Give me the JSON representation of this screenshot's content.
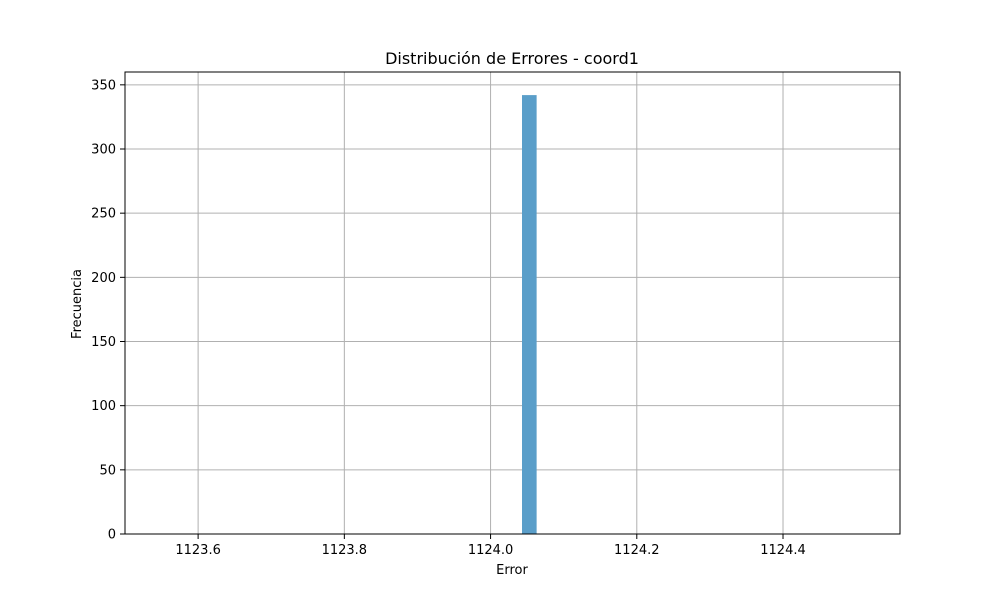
{
  "chart_data": {
    "type": "bar",
    "title": "Distribución de Errores - coord1",
    "xlabel": "Error",
    "ylabel": "Frecuencia",
    "xlim": [
      1123.5,
      1124.56
    ],
    "ylim": [
      0,
      360
    ],
    "xticks": [
      1123.6,
      1123.8,
      1124.0,
      1124.2,
      1124.4
    ],
    "xtick_labels": [
      "1123.6",
      "1123.8",
      "1124.0",
      "1124.2",
      "1124.4"
    ],
    "yticks": [
      0,
      50,
      100,
      150,
      200,
      250,
      300,
      350
    ],
    "ytick_labels": [
      "0",
      "50",
      "100",
      "150",
      "200",
      "250",
      "300",
      "350"
    ],
    "grid": true,
    "bins": [
      {
        "x_start": 1124.043,
        "x_end": 1124.063,
        "count": 342
      }
    ],
    "bar_color": "#5a9ec9",
    "grid_color": "#b0b0b0"
  }
}
